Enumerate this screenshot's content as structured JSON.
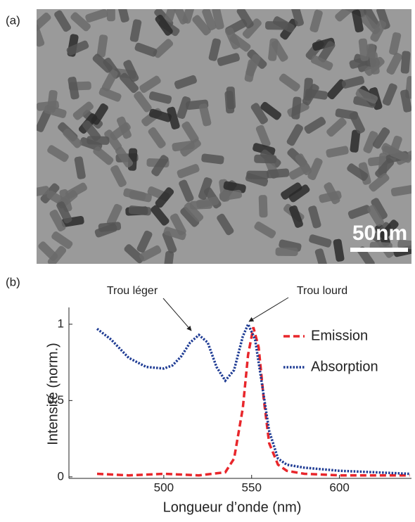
{
  "panel_a": {
    "label": "(a)",
    "scale_bar": "50nm"
  },
  "panel_b_label": "(b)",
  "chart_data": {
    "type": "line",
    "x_label": "Longueur d’onde (nm)",
    "y_label": "Intensité (norm.)",
    "annotations": [
      "Trou léger",
      "Trou lourd"
    ],
    "xlim": [
      446,
      641
    ],
    "ylim": [
      -0.01,
      1.11
    ],
    "xticks": [
      500,
      550,
      600
    ],
    "yticks": [
      0,
      0.5,
      1
    ],
    "legend": "upper right",
    "series": [
      {
        "name": "Emission",
        "color": "#e8262b",
        "style": "dashed",
        "x": [
          462,
          480,
          500,
          520,
          535,
          540,
          545,
          548,
          551,
          554,
          557,
          560,
          565,
          570,
          580,
          600,
          620,
          640
        ],
        "values": [
          0.02,
          0.01,
          0.02,
          0.01,
          0.03,
          0.12,
          0.45,
          0.8,
          0.98,
          0.85,
          0.5,
          0.22,
          0.08,
          0.04,
          0.02,
          0.01,
          0.01,
          0.01
        ]
      },
      {
        "name": "Absorption",
        "color": "#1f3c94",
        "style": "dotted",
        "x": [
          462,
          470,
          480,
          490,
          500,
          505,
          510,
          515,
          520,
          525,
          530,
          535,
          540,
          545,
          548,
          552,
          556,
          560,
          565,
          570,
          580,
          600,
          620,
          640
        ],
        "values": [
          0.97,
          0.9,
          0.78,
          0.72,
          0.71,
          0.73,
          0.79,
          0.88,
          0.93,
          0.88,
          0.72,
          0.63,
          0.7,
          0.92,
          1.0,
          0.9,
          0.6,
          0.3,
          0.12,
          0.08,
          0.06,
          0.04,
          0.03,
          0.02
        ]
      }
    ]
  }
}
